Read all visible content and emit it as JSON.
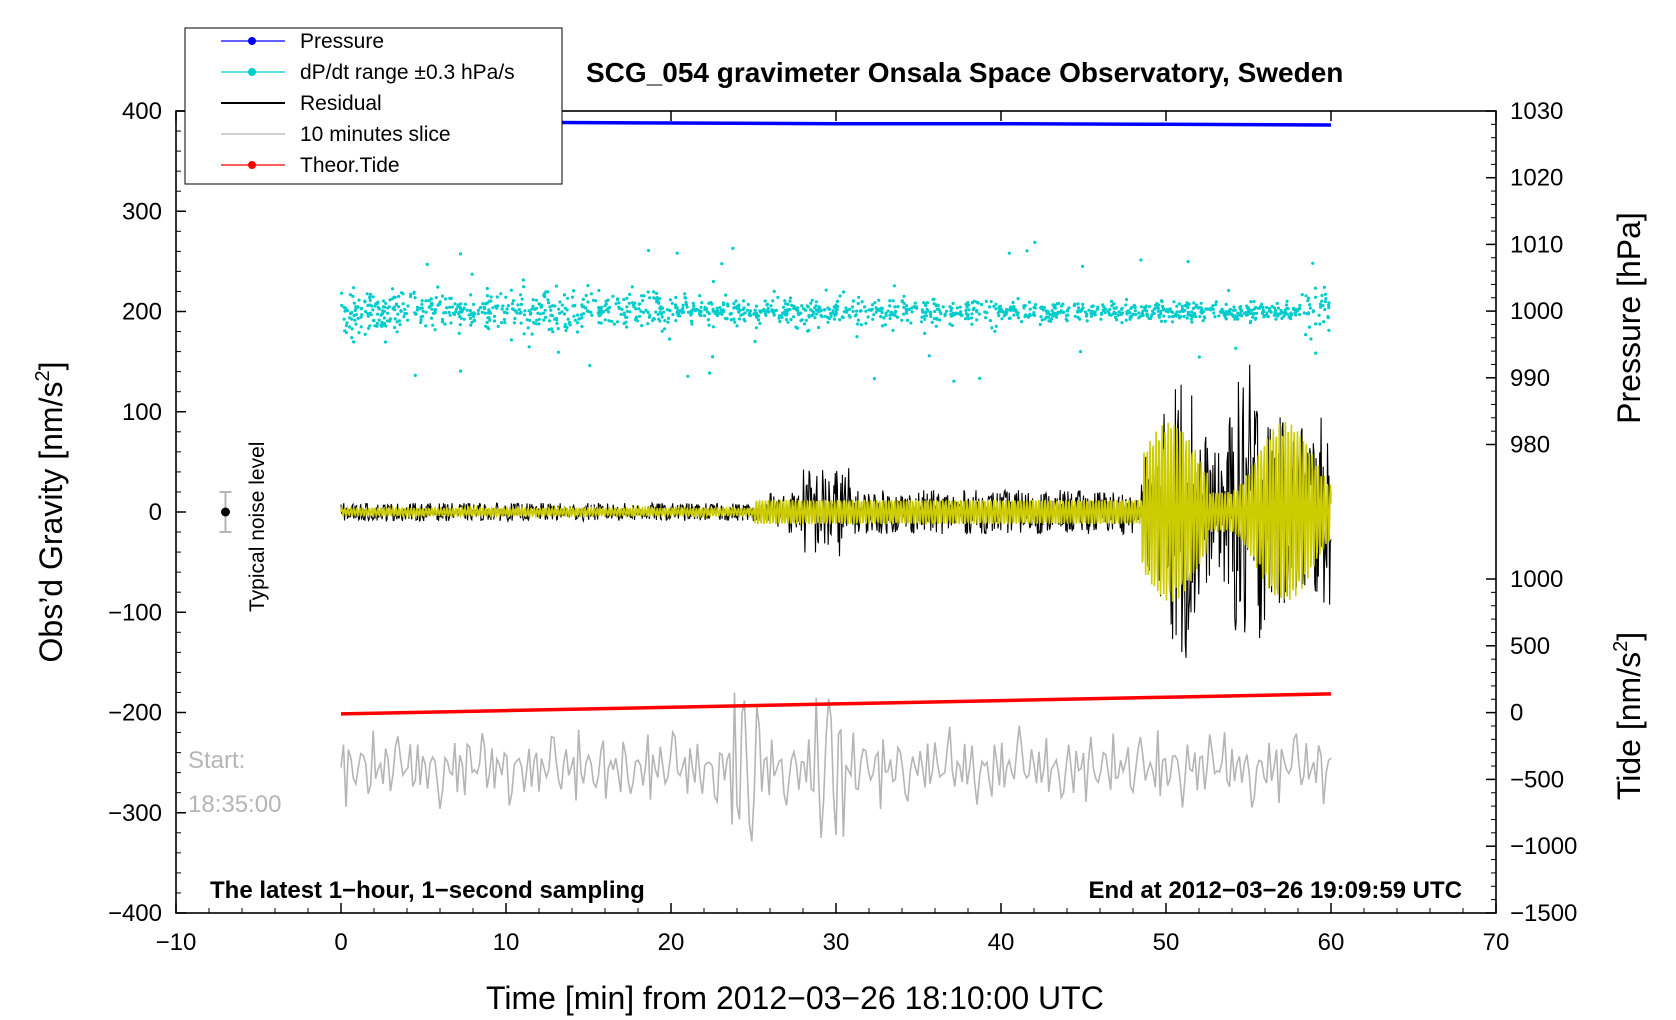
{
  "chart_data": {
    "type": "line",
    "title": "SCG_054 gravimeter Onsala Space Observatory, Sweden",
    "xlabel": "Time [min] from 2012−03−26 18:10:00 UTC",
    "ylabel_left": "Obs’d Gravity [nm/s",
    "ylabel_left_sup": "2",
    "ylabel_left_close": "]",
    "ylabel_right_pressure": "Pressure [hPa]",
    "ylabel_right_tide": "Tide [nm/s",
    "ylabel_right_tide_sup": "2",
    "ylabel_right_tide_close": "]",
    "xlim": [
      -10,
      70
    ],
    "ylim_left": [
      -400,
      400
    ],
    "x_ticks": [
      -10,
      0,
      10,
      20,
      30,
      40,
      50,
      60,
      70
    ],
    "x_tick_labels": [
      "−10",
      "0",
      "10",
      "20",
      "30",
      "40",
      "50",
      "60",
      "70"
    ],
    "y_left_ticks": [
      400,
      300,
      200,
      100,
      0,
      -100,
      -200,
      -300,
      -400
    ],
    "y_left_tick_labels": [
      "400",
      "300",
      "200",
      "100",
      "0",
      "−100",
      "−200",
      "−300",
      "−400"
    ],
    "pressure_axis": {
      "range": [
        980,
        1030
      ],
      "ticks": [
        1030,
        1020,
        1010,
        1000,
        990,
        980
      ],
      "tick_labels": [
        "1030",
        "1020",
        "1010",
        "1000",
        "990",
        "980"
      ]
    },
    "tide_axis": {
      "range": [
        -1500,
        1000
      ],
      "ticks": [
        1000,
        500,
        0,
        -500,
        -1000,
        -1500
      ],
      "tick_labels": [
        "1000",
        "500",
        "0",
        "−500",
        "−1000",
        "−1500"
      ]
    },
    "series": [
      {
        "name": "Pressure",
        "color": "#0000ff",
        "axis": "pressure",
        "x": [
          0,
          10,
          20,
          30,
          40,
          50,
          60
        ],
        "values": [
          1028.3,
          1028.3,
          1028.2,
          1028.1,
          1028.1,
          1028.0,
          1027.9
        ]
      },
      {
        "name": "dP/dt range ±0.3 hPa/s",
        "color": "#00cccc",
        "axis": "gravity",
        "center": 200,
        "spread": 20,
        "x_range": [
          0,
          60
        ]
      },
      {
        "name": "Residual",
        "color": "#000000",
        "axis": "gravity",
        "center": 0,
        "x_range": [
          0,
          60
        ],
        "peak_events_min": [
          29,
          51,
          55
        ],
        "peak_amplitude": 150
      },
      {
        "name": "10 minutes slice",
        "color": "#b5b5b5",
        "axis": "gravity",
        "center": -255,
        "x_range": [
          0,
          60
        ],
        "min_value": -350,
        "max_value": -165
      },
      {
        "name": "Theor.Tide",
        "color": "#ff0000",
        "axis": "tide",
        "x": [
          0,
          10,
          20,
          30,
          40,
          50,
          60
        ],
        "values": [
          -10,
          15,
          40,
          65,
          90,
          115,
          140
        ]
      },
      {
        "name": "filtered",
        "color": "#cccc00",
        "axis": "gravity",
        "center": 0,
        "x_range": [
          0,
          60
        ]
      }
    ],
    "noise_marker": {
      "x": -7,
      "y": 0,
      "error": 20,
      "label": "Typical noise level"
    },
    "annotations": {
      "bottom_left": "The latest 1−hour, 1−second sampling",
      "bottom_right": "End at 2012−03−26 19:09:59 UTC",
      "start_label": "Start:",
      "start_time": "18:35:00"
    }
  },
  "legend": [
    {
      "label": "Pressure",
      "color": "#0000ff",
      "marker": true
    },
    {
      "label": "dP/dt range ±0.3 hPa/s",
      "color": "#00cccc",
      "marker": true
    },
    {
      "label": "Residual",
      "color": "#000000",
      "marker": false
    },
    {
      "label": "10 minutes slice",
      "color": "#b5b5b5",
      "marker": false
    },
    {
      "label": "Theor.Tide",
      "color": "#ff0000",
      "marker": true
    }
  ]
}
